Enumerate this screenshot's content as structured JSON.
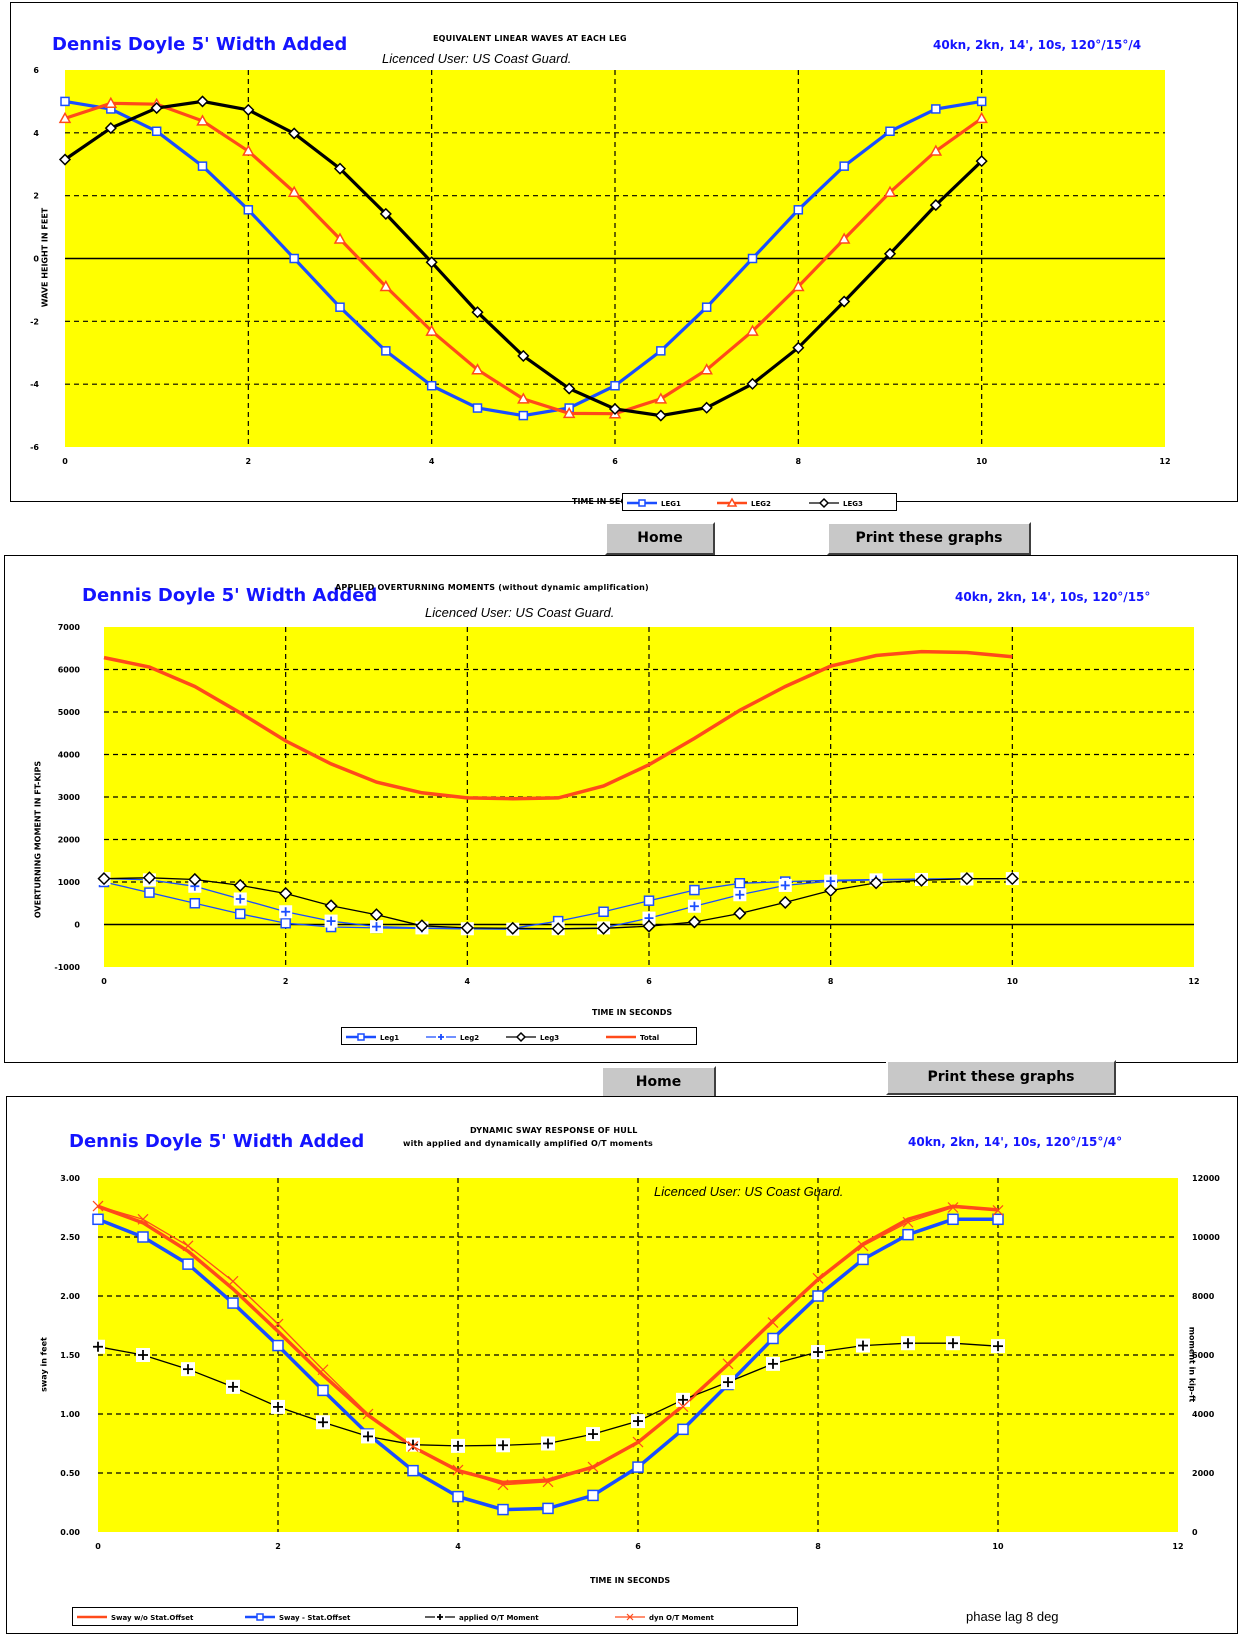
{
  "panel1": {
    "author": "Dennis Doyle 5' Width Added",
    "title": "EQUIVALENT LINEAR WAVES AT EACH LEG",
    "licence": "Licenced User: US Coast Guard.",
    "params": "40kn, 2kn, 14', 10s, 120°/15°/4",
    "legend": [
      "LEG1",
      "LEG2",
      "LEG3"
    ]
  },
  "panel2": {
    "author": "Dennis Doyle 5' Width Added",
    "title": "APPLIED OVERTURNING MOMENTS (without dynamic amplification)",
    "licence": "Licenced User: US Coast Guard.",
    "params": "40kn, 2kn, 14', 10s, 120°/15°",
    "legend": [
      "Leg1",
      "Leg2",
      "Leg3",
      "Total"
    ]
  },
  "panel3": {
    "author": "Dennis Doyle 5' Width Added",
    "title": "DYNAMIC SWAY RESPONSE OF HULL",
    "subtitle": "with applied and dynamically amplified O/T moments",
    "licence": "Licenced User: US Coast Guard.",
    "params": "40kn, 2kn, 14', 10s, 120°/15°/4°",
    "legend": [
      "Sway w/o Stat.Offset",
      "Sway - Stat.Offset",
      "applied O/T Moment",
      "dyn O/T Moment"
    ],
    "note": "phase lag 8 deg"
  },
  "buttons": {
    "home_1": "Home",
    "print_1": "Print these graphs",
    "home_2": "Home",
    "print_2": "Print these graphs"
  },
  "colors": {
    "plot_bg": "#ffff00",
    "blue": "#1a4dff",
    "orange": "#ff4a1a",
    "black": "#000000",
    "text_blue": "#1414ff"
  },
  "chart_data": [
    {
      "type": "line",
      "title": "EQUIVALENT LINEAR WAVES AT EACH LEG",
      "xlabel": "TIME IN SECONDS",
      "ylabel": "WAVE HEIGHT IN FEET",
      "xlim": [
        0,
        12
      ],
      "ylim": [
        -6,
        6
      ],
      "xticks": [
        0,
        2,
        4,
        6,
        8,
        10,
        12
      ],
      "yticks": [
        6,
        4,
        2,
        0,
        -2,
        -4,
        -6
      ],
      "grid": true,
      "legend_position": "bottom-center",
      "x": [
        0,
        0.5,
        1,
        1.5,
        2,
        2.5,
        3,
        3.5,
        4,
        4.5,
        5,
        5.5,
        6,
        6.5,
        7,
        7.5,
        8,
        8.5,
        9,
        9.5,
        10
      ],
      "series": [
        {
          "name": "LEG1",
          "color": "#1a4dff",
          "marker": "square",
          "values": [
            5.0,
            4.76,
            4.05,
            2.94,
            1.55,
            0.0,
            -1.55,
            -2.94,
            -4.05,
            -4.76,
            -5.0,
            -4.76,
            -4.05,
            -2.94,
            -1.55,
            0.0,
            1.55,
            2.94,
            4.05,
            4.76,
            5.0
          ]
        },
        {
          "name": "LEG2",
          "color": "#ff4a1a",
          "marker": "triangle",
          "values": [
            4.46,
            4.94,
            4.91,
            4.38,
            3.42,
            2.11,
            0.62,
            -0.89,
            -2.31,
            -3.54,
            -4.47,
            -4.93,
            -4.94,
            -4.47,
            -3.54,
            -2.31,
            -0.89,
            0.62,
            2.11,
            3.42,
            4.46
          ]
        },
        {
          "name": "LEG3",
          "color": "#000000",
          "marker": "diamond",
          "values": [
            3.15,
            4.15,
            4.79,
            5.0,
            4.73,
            3.98,
            2.86,
            1.42,
            -0.12,
            -1.71,
            -3.1,
            -4.14,
            -4.79,
            -5.0,
            -4.75,
            -3.99,
            -2.84,
            -1.37,
            0.15,
            1.7,
            3.1
          ]
        }
      ]
    },
    {
      "type": "line",
      "title": "APPLIED OVERTURNING MOMENTS (without dynamic amplification)",
      "xlabel": "TIME IN SECONDS",
      "ylabel": "OVERTURNING MOMENT IN FT-KIPS",
      "xlim": [
        0,
        12
      ],
      "ylim": [
        -1000,
        7000
      ],
      "xticks": [
        0,
        2,
        4,
        6,
        8,
        10,
        12
      ],
      "yticks": [
        7000,
        6000,
        5000,
        4000,
        3000,
        2000,
        1000,
        0,
        -1000
      ],
      "grid": true,
      "legend_position": "bottom-center",
      "x": [
        0,
        0.5,
        1,
        1.5,
        2,
        2.5,
        3,
        3.5,
        4,
        4.5,
        5,
        5.5,
        6,
        6.5,
        7,
        7.5,
        8,
        8.5,
        9,
        9.5,
        10
      ],
      "series": [
        {
          "name": "Leg1",
          "color": "#1a4dff",
          "marker": "square",
          "values": [
            1000,
            750,
            500,
            250,
            30,
            -60,
            -80,
            -90,
            -100,
            -90,
            80,
            300,
            560,
            810,
            970,
            1010,
            1040,
            1060,
            1070,
            1080,
            1080
          ]
        },
        {
          "name": "Leg2",
          "color": "#1a4dff",
          "marker": "plus",
          "values": [
            1080,
            1050,
            900,
            600,
            300,
            80,
            -50,
            -80,
            -100,
            -110,
            -100,
            -80,
            150,
            430,
            700,
            920,
            1020,
            1050,
            1060,
            1070,
            1080
          ]
        },
        {
          "name": "Leg3",
          "color": "#000000",
          "marker": "diamond",
          "values": [
            1080,
            1100,
            1060,
            920,
            730,
            440,
            230,
            -30,
            -80,
            -90,
            -100,
            -90,
            -40,
            60,
            260,
            520,
            800,
            980,
            1040,
            1080,
            1080
          ]
        },
        {
          "name": "Total",
          "color": "#ff4a1a",
          "marker": "none",
          "values": [
            6280,
            6060,
            5600,
            4980,
            4320,
            3780,
            3350,
            3100,
            2980,
            2960,
            2980,
            3260,
            3760,
            4380,
            5040,
            5600,
            6080,
            6330,
            6420,
            6400,
            6300
          ]
        }
      ]
    },
    {
      "type": "line",
      "title": "DYNAMIC SWAY RESPONSE OF HULL",
      "subtitle": "with applied and dynamically amplified O/T moments",
      "xlabel": "TIME IN SECONDS",
      "ylabel": "sway in feet",
      "y2label": "moment in kip-ft",
      "xlim": [
        0,
        12
      ],
      "ylim": [
        0,
        3
      ],
      "y2lim": [
        0,
        12000
      ],
      "xticks": [
        0,
        2,
        4,
        6,
        8,
        10,
        12
      ],
      "yticks": [
        "3.00",
        "2.50",
        "2.00",
        "1.50",
        "1.00",
        "0.50",
        "0.00"
      ],
      "y2ticks": [
        12000,
        10000,
        8000,
        6000,
        4000,
        2000,
        0
      ],
      "grid": true,
      "legend_position": "bottom-left",
      "x": [
        0,
        0.5,
        1,
        1.5,
        2,
        2.5,
        3,
        3.5,
        4,
        4.5,
        5,
        5.5,
        6,
        6.5,
        7,
        7.5,
        8,
        8.5,
        9,
        9.5,
        10
      ],
      "series": [
        {
          "name": "Sway w/o Stat.Offset",
          "axis": "left",
          "color": "#ff4a1a",
          "marker": "none",
          "values": [
            2.76,
            2.62,
            2.38,
            2.06,
            1.7,
            1.33,
            0.99,
            0.72,
            0.52,
            0.42,
            0.44,
            0.55,
            0.76,
            1.07,
            1.42,
            1.79,
            2.14,
            2.44,
            2.65,
            2.76,
            2.73
          ]
        },
        {
          "name": "Sway - Stat.Offset",
          "axis": "left",
          "color": "#1a4dff",
          "marker": "square",
          "values": [
            2.65,
            2.5,
            2.27,
            1.94,
            1.58,
            1.2,
            0.83,
            0.52,
            0.3,
            0.19,
            0.2,
            0.31,
            0.55,
            0.87,
            1.25,
            1.64,
            2.0,
            2.31,
            2.52,
            2.65,
            2.65
          ]
        },
        {
          "name": "applied O/T Moment",
          "axis": "right",
          "color": "#000000",
          "marker": "plus",
          "values": [
            6280,
            6000,
            5520,
            4920,
            4240,
            3720,
            3240,
            2960,
            2920,
            2940,
            3000,
            3320,
            3760,
            4480,
            5080,
            5700,
            6100,
            6320,
            6400,
            6400,
            6300
          ]
        },
        {
          "name": "dyn O/T Moment",
          "axis": "right",
          "color": "#ff4a1a",
          "marker": "x",
          "values": [
            11050,
            10600,
            9700,
            8500,
            7050,
            5500,
            4000,
            2900,
            2100,
            1600,
            1700,
            2200,
            3050,
            4250,
            5700,
            7100,
            8600,
            9700,
            10500,
            11000,
            10900
          ]
        }
      ]
    }
  ]
}
